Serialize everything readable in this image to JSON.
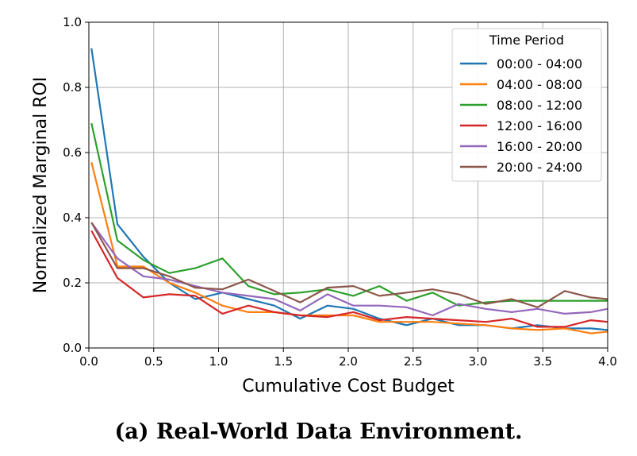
{
  "caption": "(a) Real-World Data Environment.",
  "chart_data": {
    "type": "line",
    "title": "",
    "xlabel": "Cumulative Cost Budget",
    "ylabel": "Normalized Marginal ROI",
    "xlim": [
      0.0,
      4.0
    ],
    "ylim": [
      0.0,
      1.0
    ],
    "xticks": [
      0.0,
      0.5,
      1.0,
      1.5,
      2.0,
      2.5,
      3.0,
      3.5,
      4.0
    ],
    "xtick_labels": [
      "0.0",
      "0.5",
      "1.0",
      "1.5",
      "2.0",
      "2.5",
      "3.0",
      "3.5",
      "4.0"
    ],
    "yticks": [
      0.0,
      0.2,
      0.4,
      0.6,
      0.8,
      1.0
    ],
    "ytick_labels": [
      "0.0",
      "0.2",
      "0.4",
      "0.6",
      "0.8",
      "1.0"
    ],
    "grid": true,
    "legend": {
      "title": "Time Period",
      "placement": "top-right"
    },
    "x": [
      0.02,
      0.22,
      0.42,
      0.62,
      0.82,
      1.03,
      1.23,
      1.43,
      1.63,
      1.84,
      2.04,
      2.24,
      2.45,
      2.65,
      2.85,
      3.06,
      3.26,
      3.46,
      3.67,
      3.87,
      4.0
    ],
    "series": [
      {
        "name": "00:00 - 04:00",
        "color": "#1f77b4",
        "values": [
          0.92,
          0.38,
          0.28,
          0.2,
          0.15,
          0.17,
          0.15,
          0.13,
          0.09,
          0.13,
          0.12,
          0.09,
          0.07,
          0.09,
          0.07,
          0.07,
          0.06,
          0.07,
          0.06,
          0.06,
          0.055
        ]
      },
      {
        "name": "04:00 - 08:00",
        "color": "#ff7f0e",
        "values": [
          0.57,
          0.25,
          0.25,
          0.2,
          0.17,
          0.13,
          0.11,
          0.11,
          0.1,
          0.1,
          0.1,
          0.08,
          0.08,
          0.08,
          0.075,
          0.07,
          0.06,
          0.055,
          0.06,
          0.045,
          0.05
        ]
      },
      {
        "name": "08:00 - 12:00",
        "color": "#2ca02c",
        "values": [
          0.69,
          0.33,
          0.27,
          0.23,
          0.245,
          0.275,
          0.19,
          0.165,
          0.17,
          0.18,
          0.16,
          0.19,
          0.145,
          0.17,
          0.13,
          0.14,
          0.145,
          0.145,
          0.145,
          0.145,
          0.145
        ]
      },
      {
        "name": "12:00 - 16:00",
        "color": "#d62728",
        "values": [
          0.36,
          0.215,
          0.155,
          0.165,
          0.16,
          0.105,
          0.13,
          0.11,
          0.1,
          0.095,
          0.11,
          0.085,
          0.095,
          0.09,
          0.085,
          0.08,
          0.09,
          0.065,
          0.065,
          0.085,
          0.08
        ]
      },
      {
        "name": "16:00 - 20:00",
        "color": "#9467bd",
        "values": [
          0.385,
          0.275,
          0.22,
          0.21,
          0.19,
          0.17,
          0.16,
          0.15,
          0.115,
          0.165,
          0.13,
          0.13,
          0.125,
          0.1,
          0.135,
          0.12,
          0.11,
          0.12,
          0.105,
          0.11,
          0.12
        ]
      },
      {
        "name": "20:00 - 24:00",
        "color": "#8c564b",
        "values": [
          0.385,
          0.245,
          0.245,
          0.22,
          0.185,
          0.18,
          0.21,
          0.175,
          0.14,
          0.185,
          0.19,
          0.16,
          0.17,
          0.18,
          0.165,
          0.135,
          0.15,
          0.125,
          0.175,
          0.155,
          0.15
        ]
      }
    ]
  }
}
